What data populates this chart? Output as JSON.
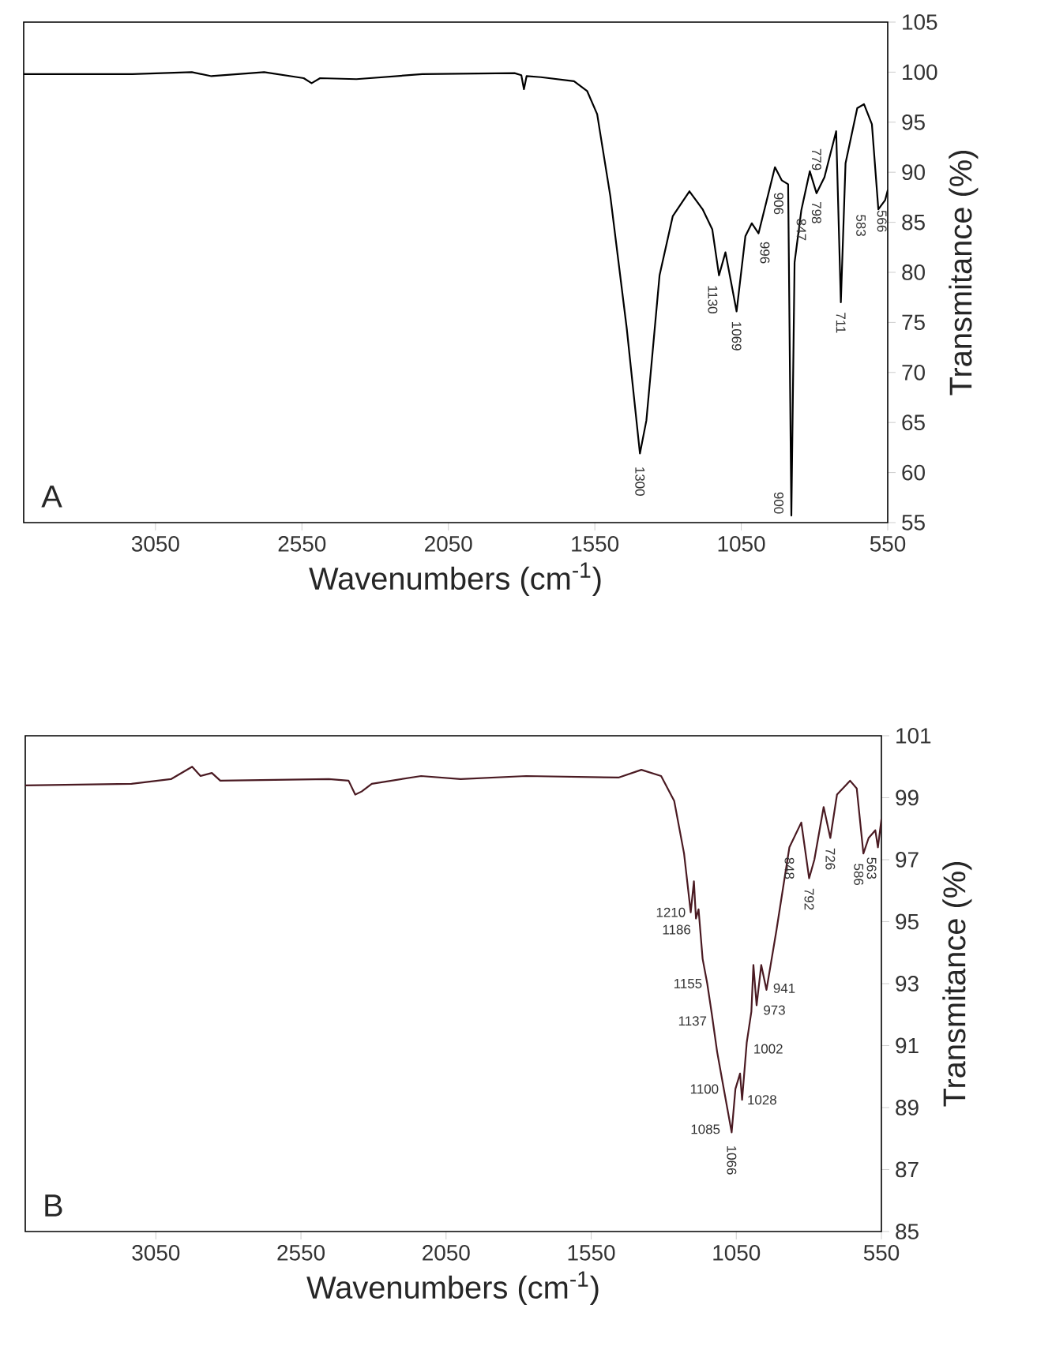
{
  "chart_data": [
    {
      "type": "line",
      "xlabel": "Wavenumbers (cm$^{-1}$)",
      "ylabel": "Transmitance (%)",
      "color": "#000000",
      "x": [
        3500,
        3129,
        2926,
        2859,
        2679,
        2544,
        2517,
        2488,
        2364,
        2139,
        1824,
        1801,
        1792,
        1783,
        1734,
        1621,
        1576,
        1542,
        1497,
        1441,
        1396,
        1374,
        1329,
        1284,
        1227,
        1182,
        1149,
        1126,
        1104,
        1066,
        1036,
        1014,
        991,
        935,
        912,
        890,
        879,
        868,
        845,
        816,
        793,
        766,
        726,
        710,
        694,
        654,
        631,
        604,
        582,
        559,
        550
      ],
      "values": [
        99.8,
        99.8,
        100.0,
        99.6,
        100.0,
        99.4,
        98.9,
        99.4,
        99.3,
        99.8,
        99.9,
        99.7,
        98.3,
        99.6,
        99.5,
        99.1,
        98.1,
        95.8,
        87.6,
        74.4,
        61.9,
        65.2,
        79.7,
        85.6,
        88.1,
        86.3,
        84.3,
        79.7,
        82.0,
        76.1,
        83.6,
        84.9,
        83.9,
        90.5,
        89.2,
        88.8,
        55.7,
        81.0,
        86.2,
        90.1,
        87.9,
        89.5,
        94.1,
        77.0,
        90.9,
        96.4,
        96.8,
        94.8,
        86.3,
        87.2,
        88.2
      ],
      "xlim": [
        3500,
        550
      ],
      "xticks": [
        3050,
        2550,
        2050,
        1550,
        1050,
        550
      ],
      "ylim": [
        55,
        105
      ],
      "yticks": [
        55,
        60,
        65,
        70,
        75,
        80,
        85,
        90,
        95,
        100,
        105
      ],
      "annotations": [
        "A",
        {
          "text": "1300",
          "x": 1396,
          "y": 61.9
        },
        {
          "text": "1130",
          "x": 1126,
          "y": 79.7
        },
        {
          "text": "1069",
          "x": 1066,
          "y": 76.1
        },
        {
          "text": "996",
          "x": 991,
          "y": 83.9
        },
        {
          "text": "906",
          "x": 890,
          "y": 88.8
        },
        {
          "text": "900",
          "x": 879,
          "y": 55.7
        },
        {
          "text": "847",
          "x": 845,
          "y": 86.2
        },
        {
          "text": "798",
          "x": 793,
          "y": 87.9
        },
        {
          "text": "779",
          "x": 766,
          "y": 89.5
        },
        {
          "text": "711",
          "x": 710,
          "y": 77.0
        },
        {
          "text": "583",
          "x": 582,
          "y": 86.3
        },
        {
          "text": "566",
          "x": 559,
          "y": 87.2
        }
      ]
    },
    {
      "type": "line",
      "xlabel": "Wavenumbers (cm$^{-1}$)",
      "ylabel": "Transmitance (%)",
      "color": "#4a1a22",
      "x": [
        3500,
        3134,
        2998,
        2925,
        2896,
        2857,
        2828,
        2454,
        2386,
        2363,
        2341,
        2306,
        2136,
        2000,
        1774,
        1456,
        1377,
        1309,
        1264,
        1230,
        1207,
        1196,
        1189,
        1180,
        1166,
        1150,
        1134,
        1116,
        1093,
        1066,
        1053,
        1037,
        1030,
        1014,
        998,
        991,
        980,
        964,
        946,
        912,
        867,
        826,
        799,
        781,
        749,
        726,
        703,
        658,
        635,
        612,
        594,
        571,
        562,
        550
      ],
      "values": [
        99.4,
        99.45,
        99.6,
        100.0,
        99.7,
        99.8,
        99.55,
        99.6,
        99.55,
        99.1,
        99.2,
        99.45,
        99.7,
        99.6,
        99.7,
        99.65,
        99.9,
        99.7,
        98.9,
        97.2,
        95.3,
        96.3,
        95.1,
        95.4,
        93.8,
        93.0,
        92.0,
        90.8,
        89.6,
        88.2,
        89.6,
        90.1,
        89.25,
        91.1,
        92.1,
        93.6,
        92.3,
        93.6,
        92.8,
        94.7,
        97.4,
        98.2,
        96.4,
        97.0,
        98.7,
        97.7,
        99.1,
        99.55,
        99.3,
        97.2,
        97.7,
        97.95,
        97.4,
        98.3
      ],
      "xlim": [
        3500,
        550
      ],
      "xticks": [
        3050,
        2550,
        2050,
        1550,
        1050,
        550
      ],
      "ylim": [
        85,
        101
      ],
      "yticks": [
        85,
        87,
        89,
        91,
        93,
        95,
        97,
        99,
        101
      ],
      "annotations": [
        "B",
        {
          "text": "1210",
          "x": 1207,
          "y": 95.3
        },
        {
          "text": "1186",
          "x": 1189,
          "y": 95.1
        },
        {
          "text": "1155",
          "x": 1150,
          "y": 93.0
        },
        {
          "text": "1137",
          "x": 1134,
          "y": 92.0
        },
        {
          "text": "1100",
          "x": 1093,
          "y": 89.6
        },
        {
          "text": "1085",
          "x": 1066,
          "y": 88.2
        },
        {
          "text": "1066",
          "x": 1066,
          "y": 88.2
        },
        {
          "text": "1028",
          "x": 1030,
          "y": 89.25
        },
        {
          "text": "1002",
          "x": 1014,
          "y": 91.1
        },
        {
          "text": "973",
          "x": 980,
          "y": 92.3
        },
        {
          "text": "941",
          "x": 946,
          "y": 92.8
        },
        {
          "text": "848",
          "x": 867,
          "y": 97.4
        },
        {
          "text": "792",
          "x": 799,
          "y": 96.4
        },
        {
          "text": "726",
          "x": 726,
          "y": 97.7
        },
        {
          "text": "586",
          "x": 612,
          "y": 97.2
        },
        {
          "text": "563",
          "x": 562,
          "y": 97.4
        }
      ]
    }
  ]
}
